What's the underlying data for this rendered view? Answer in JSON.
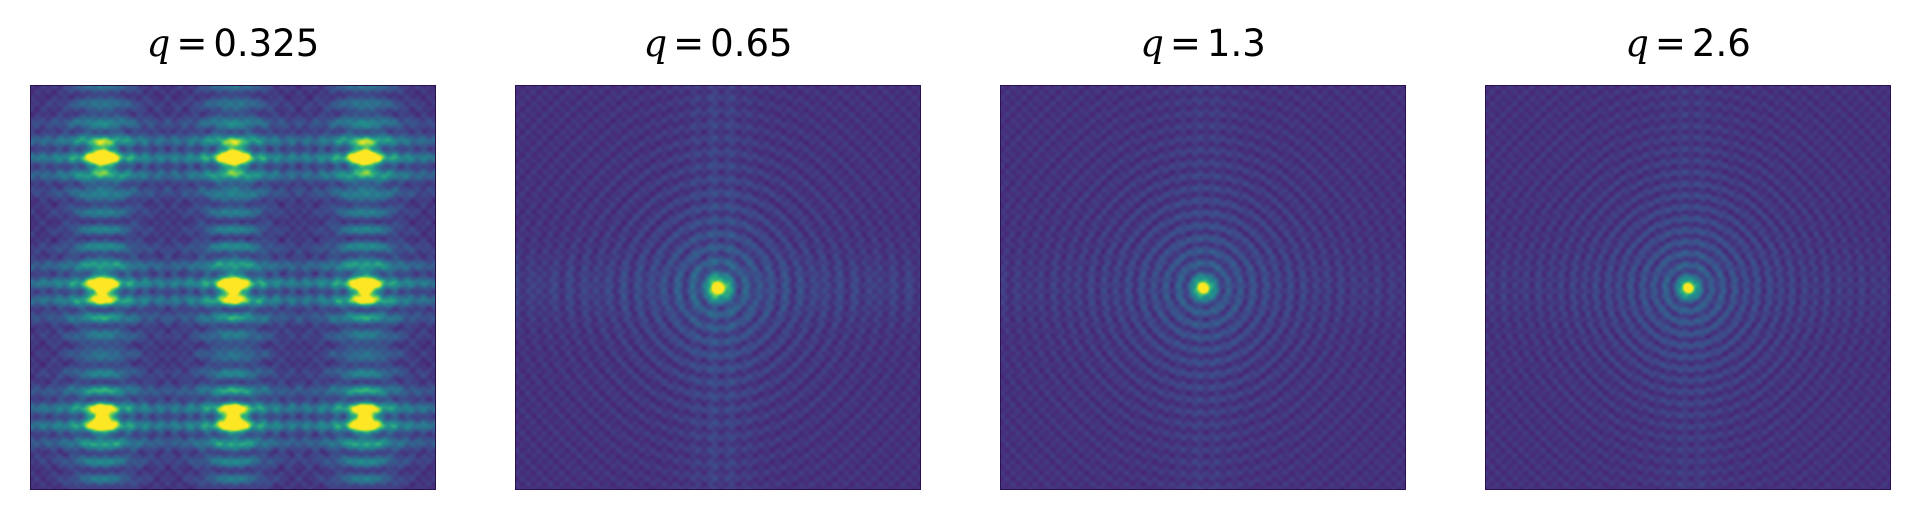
{
  "figure": {
    "panels": [
      {
        "symbol": "q",
        "equals": "=",
        "value": "0.325",
        "spots_per_side": 3
      },
      {
        "symbol": "q",
        "equals": "=",
        "value": "0.65",
        "spots_per_side": 1
      },
      {
        "symbol": "q",
        "equals": "=",
        "value": "1.3",
        "spots_per_side": 1
      },
      {
        "symbol": "q",
        "equals": "=",
        "value": "2.6",
        "spots_per_side": 1
      }
    ],
    "colormap": "viridis"
  }
}
